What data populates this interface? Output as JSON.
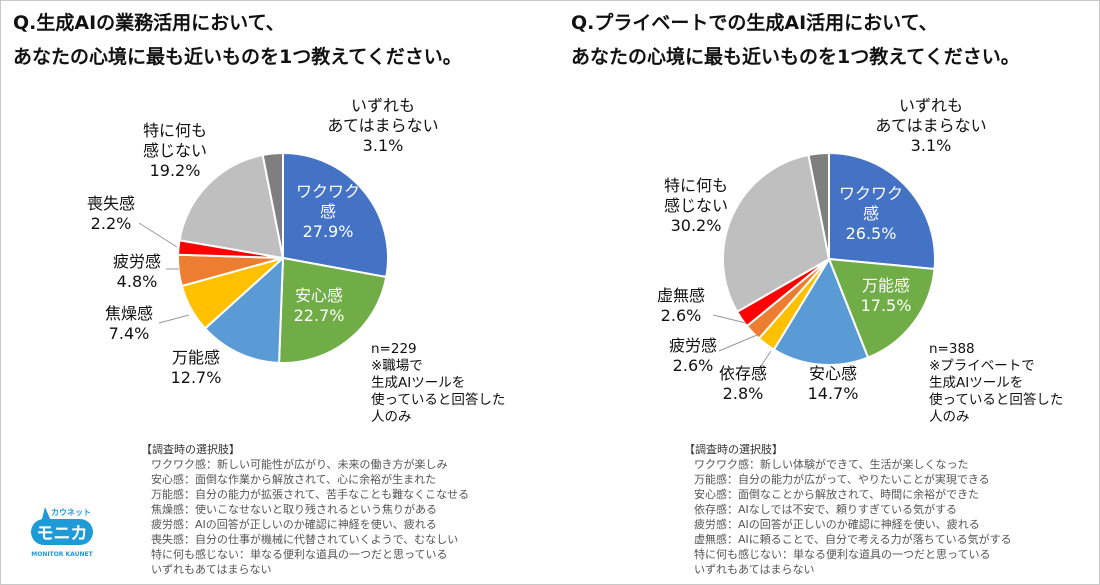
{
  "chart_data": [
    {
      "type": "pie",
      "title_lines": [
        "Q.生成AIの業務活用において、",
        "あなたの心境に最も近いものを1つ教えてください。"
      ],
      "slices": [
        {
          "label_lines": [
            "ワクワク",
            "感"
          ],
          "value": 27.9,
          "color": "#4472C4"
        },
        {
          "label_lines": [
            "安心感"
          ],
          "value": 22.7,
          "color": "#70AD47"
        },
        {
          "label_lines": [
            "万能感"
          ],
          "value": 12.7,
          "color": "#5B9BD5"
        },
        {
          "label_lines": [
            "焦燥感"
          ],
          "value": 7.4,
          "color": "#FFC000"
        },
        {
          "label_lines": [
            "疲労感"
          ],
          "value": 4.8,
          "color": "#ED7D31"
        },
        {
          "label_lines": [
            "喪失感"
          ],
          "value": 2.2,
          "color": "#FF0000"
        },
        {
          "label_lines": [
            "特に何も",
            "感じない"
          ],
          "value": 19.2,
          "color": "#BFBFBF"
        },
        {
          "label_lines": [
            "いずれも",
            "あてはまらない"
          ],
          "value": 3.1,
          "color": "#7F7F7F"
        }
      ],
      "note_lines": [
        "n=229",
        "※職場で",
        "生成AIツールを",
        "使っていると回答した",
        "人のみ"
      ],
      "legend_title": "【調査時の選択肢】",
      "legend_items": [
        "ワクワク感：新しい可能性が広がり、未来の働き方が楽しみ",
        "安心感：面倒な作業から解放されて、心に余裕が生まれた",
        "万能感：自分の能力が拡張されて、苦手なことも難なくこなせる",
        "焦燥感：使いこなせないと取り残されるという焦りがある",
        "疲労感：AIの回答が正しいのか確認に神経を使い、疲れる",
        "喪失感：自分の仕事が機械に代替されていくようで、むなしい",
        "特に何も感じない：単なる便利な道具の一つだと思っている",
        "いずれもあてはまらない"
      ]
    },
    {
      "type": "pie",
      "title_lines": [
        "Q.プライベートでの生成AI活用において、",
        "あなたの心境に最も近いものを1つ教えてください。"
      ],
      "slices": [
        {
          "label_lines": [
            "ワクワク",
            "感"
          ],
          "value": 26.5,
          "color": "#4472C4"
        },
        {
          "label_lines": [
            "万能感"
          ],
          "value": 17.5,
          "color": "#70AD47"
        },
        {
          "label_lines": [
            "安心感"
          ],
          "value": 14.7,
          "color": "#5B9BD5"
        },
        {
          "label_lines": [
            "依存感"
          ],
          "value": 2.8,
          "color": "#FFC000"
        },
        {
          "label_lines": [
            "疲労感"
          ],
          "value": 2.6,
          "color": "#ED7D31"
        },
        {
          "label_lines": [
            "虚無感"
          ],
          "value": 2.6,
          "color": "#FF0000"
        },
        {
          "label_lines": [
            "特に何も",
            "感じない"
          ],
          "value": 30.2,
          "color": "#BFBFBF"
        },
        {
          "label_lines": [
            "いずれも",
            "あてはまらない"
          ],
          "value": 3.1,
          "color": "#7F7F7F"
        }
      ],
      "note_lines": [
        "n=388",
        "※プライベートで",
        "生成AIツールを",
        "使っていると回答した",
        "人のみ"
      ],
      "legend_title": "【調査時の選択肢】",
      "legend_items": [
        "ワクワク感：新しい体験ができて、生活が楽しくなった",
        "万能感：自分の能力が広がって、やりたいことが実現できる",
        "安心感：面倒なことから解放されて、時間に余裕ができた",
        "依存感：AIなしでは不安で、頼りすぎている気がする",
        "疲労感：AIの回答が正しいのか確認に神経を使い、疲れる",
        "虚無感：AIに頼ることで、自分で考える力が落ちている気がする",
        "特に何も感じない：単なる便利な道具の一つだと思っている",
        "いずれもあてはまらない"
      ]
    }
  ],
  "logo": {
    "kana": "カウネット",
    "name": "モニカ",
    "sub": "MONITOR KAUNET",
    "color": "#1E9BD7"
  }
}
